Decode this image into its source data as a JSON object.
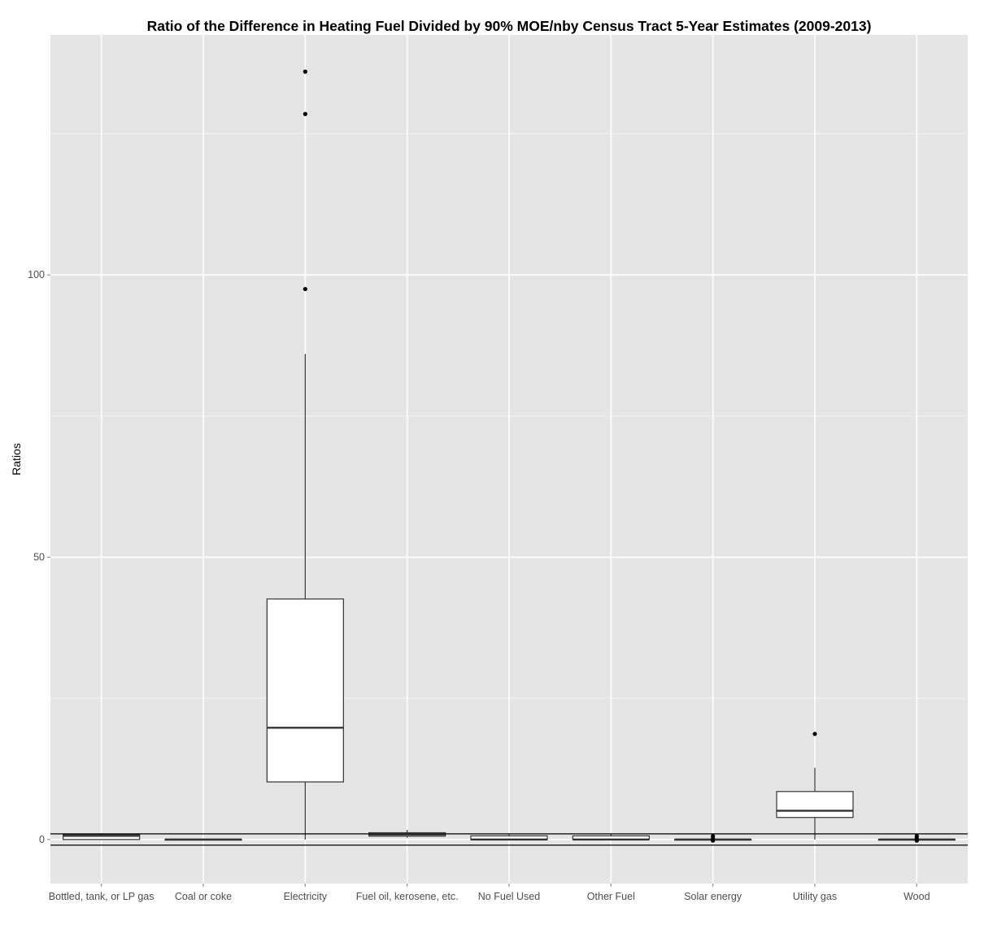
{
  "chart_data": {
    "type": "box",
    "title": "Ratio of the Difference in Heating Fuel Divided by 90% MOE/nby Census Tract 5-Year Estimates (2009-2013)",
    "xlabel": "",
    "ylabel": "Ratios",
    "ylim": [
      -7.8,
      142.5
    ],
    "yticks": [
      0,
      50,
      100
    ],
    "grid": true,
    "legend": "none",
    "colors": {
      "panel": "#e5e5e5",
      "grid_major": "#ffffff",
      "grid_minor": "#f2f2f2",
      "box_fill": "#ffffff",
      "box_stroke": "#333333",
      "outlier": "#000000",
      "hline": "#000000"
    },
    "categories": [
      "Bottled, tank, or LP gas",
      "Coal or coke",
      "Electricity",
      "Fuel oil, kerosene, etc.",
      "No Fuel Used",
      "Other Fuel",
      "Solar energy",
      "Utility gas",
      "Wood"
    ],
    "boxes": [
      {
        "min": 0.0,
        "q1": 0.0,
        "median": 0.65,
        "q3": 0.9,
        "max": 1.1,
        "outliers": []
      },
      {
        "min": 0.0,
        "q1": 0.0,
        "median": 0.0,
        "q3": 0.0,
        "max": 0.0,
        "outliers": []
      },
      {
        "min": 0.0,
        "q1": 10.2,
        "median": 19.8,
        "q3": 42.6,
        "max": 86.0,
        "outliers": [
          97.5,
          128.5,
          136.0
        ]
      },
      {
        "min": 0.3,
        "q1": 0.6,
        "median": 0.9,
        "q3": 1.2,
        "max": 1.7,
        "outliers": []
      },
      {
        "min": 0.0,
        "q1": 0.0,
        "median": 0.0,
        "q3": 0.65,
        "max": 1.05,
        "outliers": []
      },
      {
        "min": 0.0,
        "q1": 0.0,
        "median": 0.0,
        "q3": 0.65,
        "max": 1.0,
        "outliers": []
      },
      {
        "min": 0.0,
        "q1": 0.0,
        "median": 0.0,
        "q3": 0.0,
        "max": 0.0,
        "outliers": [
          -0.2,
          0.2,
          0.6
        ]
      },
      {
        "min": 0.0,
        "q1": 3.9,
        "median": 5.1,
        "q3": 8.5,
        "max": 12.7,
        "outliers": [
          18.7
        ]
      },
      {
        "min": 0.0,
        "q1": 0.0,
        "median": 0.0,
        "q3": 0.0,
        "max": 0.0,
        "outliers": [
          -0.2,
          0.2,
          0.6
        ]
      }
    ],
    "hlines": [
      1,
      -1
    ]
  }
}
